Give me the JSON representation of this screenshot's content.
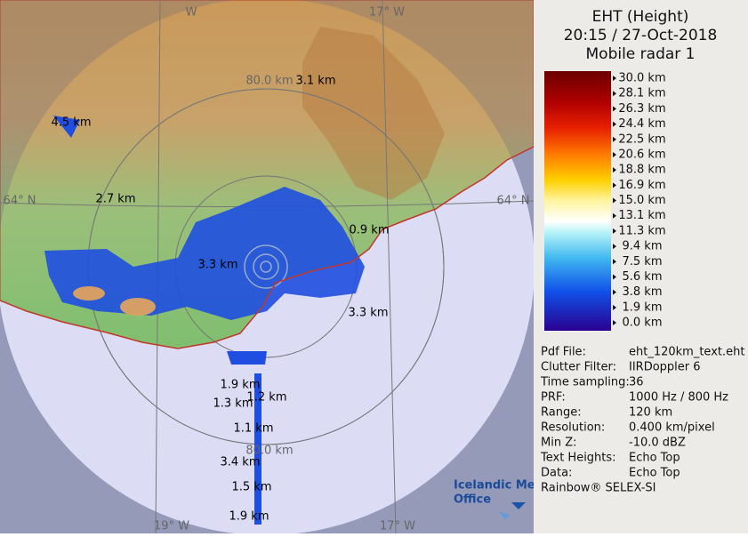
{
  "header": {
    "lines": [
      "EHT (Height)",
      "20:15 / 27-Oct-2018",
      "Mobile radar 1"
    ]
  },
  "legend": {
    "labels": [
      "30.0 km",
      "28.1 km",
      "26.3 km",
      "24.4 km",
      "22.5 km",
      "20.6 km",
      "18.8 km",
      "16.9 km",
      "15.0 km",
      "13.1 km",
      "11.3 km",
      "9.4 km",
      "7.5 km",
      "5.6 km",
      "3.8 km",
      "1.9 km",
      "0.0 km"
    ]
  },
  "info": {
    "rows": [
      [
        "Pdf File:",
        "eht_120km_text.eht"
      ],
      [
        "Clutter Filter:",
        "IIRDoppler 6"
      ],
      [
        "Time sampling:",
        "36"
      ],
      [
        "PRF:",
        "1000 Hz / 800 Hz"
      ],
      [
        "Range:",
        "120 km"
      ],
      [
        "Resolution:",
        "0.400 km/pixel"
      ],
      [
        "Min Z:",
        "-10.0 dBZ"
      ],
      [
        "Text Heights:",
        "Echo Top"
      ],
      [
        "Data:",
        "Echo Top"
      ]
    ],
    "footer": "Rainbow® SELEX-SI"
  },
  "map": {
    "labels": [
      "W",
      "17° W",
      "80.0 km",
      "3.1 km",
      "4.5 km",
      "64° N",
      "2.7 km",
      "64° N",
      "0.9 km",
      "3.3 km",
      "3.3 km",
      "1.9 km",
      "1.2 km",
      "1.3 km",
      "1.1 km",
      "80.0 km",
      "3.4 km",
      "1.5 km",
      "1.9 km",
      "19° W",
      "17° W"
    ],
    "logo": [
      "Icelandic Met",
      "Office"
    ]
  }
}
